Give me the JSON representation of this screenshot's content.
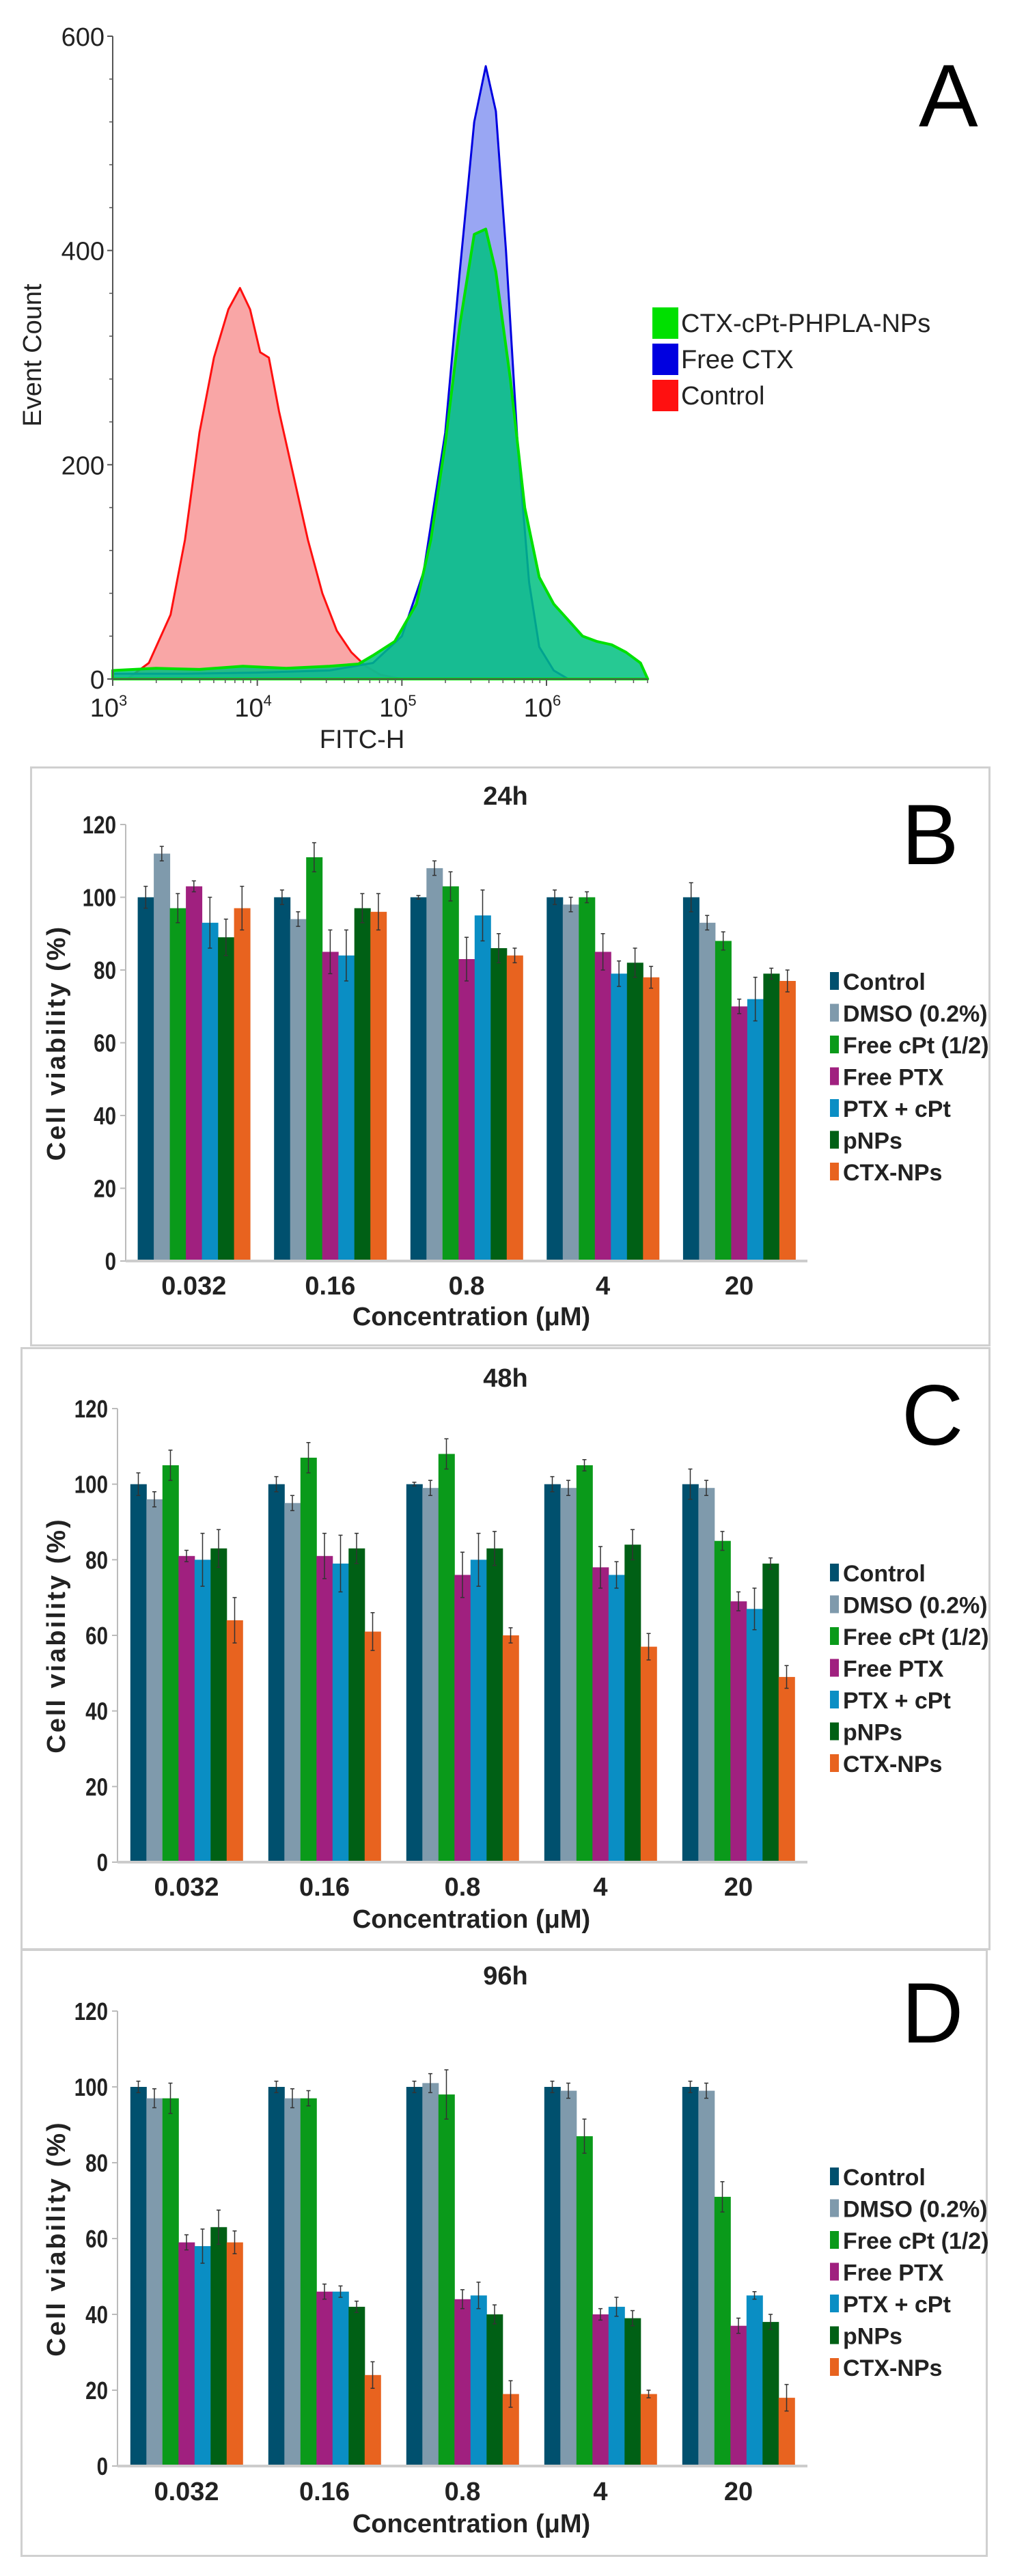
{
  "chart_data": [
    {
      "type": "area",
      "panel_letter": "A",
      "xlabel": "FITC-H",
      "ylabel": "Event Count",
      "xscale": "log",
      "xlim_log10": [
        3,
        6.7
      ],
      "ylim": [
        0,
        600
      ],
      "yticks": [
        "0",
        "200",
        "400",
        "600"
      ],
      "xticks": [
        {
          "base": "10",
          "exp": "3"
        },
        {
          "base": "10",
          "exp": "4"
        },
        {
          "base": "10",
          "exp": "5"
        },
        {
          "base": "10",
          "exp": "6"
        }
      ],
      "legend_position": "right",
      "series": [
        {
          "name": "CTX-cPt-PHPLA-NPs",
          "color": "#00e000",
          "fill": "#00c080",
          "points_log10x_count": [
            [
              3,
              8
            ],
            [
              3.3,
              10
            ],
            [
              3.6,
              9
            ],
            [
              3.9,
              12
            ],
            [
              4.2,
              10
            ],
            [
              4.5,
              12
            ],
            [
              4.7,
              14
            ],
            [
              4.8,
              22
            ],
            [
              4.95,
              35
            ],
            [
              5.1,
              70
            ],
            [
              5.2,
              130
            ],
            [
              5.3,
              220
            ],
            [
              5.4,
              330
            ],
            [
              5.5,
              415
            ],
            [
              5.58,
              420
            ],
            [
              5.65,
              380
            ],
            [
              5.75,
              280
            ],
            [
              5.85,
              160
            ],
            [
              5.95,
              95
            ],
            [
              6.05,
              70
            ],
            [
              6.15,
              55
            ],
            [
              6.25,
              40
            ],
            [
              6.35,
              35
            ],
            [
              6.45,
              32
            ],
            [
              6.55,
              25
            ],
            [
              6.65,
              15
            ],
            [
              6.7,
              0
            ]
          ]
        },
        {
          "name": "Free CTX",
          "color": "#0000e0",
          "fill": "#8090f0",
          "points_log10x_count": [
            [
              3,
              5
            ],
            [
              3.5,
              5
            ],
            [
              4,
              6
            ],
            [
              4.5,
              8
            ],
            [
              4.8,
              15
            ],
            [
              5.0,
              40
            ],
            [
              5.15,
              100
            ],
            [
              5.3,
              230
            ],
            [
              5.4,
              380
            ],
            [
              5.5,
              520
            ],
            [
              5.58,
              572
            ],
            [
              5.65,
              530
            ],
            [
              5.72,
              400
            ],
            [
              5.8,
              220
            ],
            [
              5.88,
              90
            ],
            [
              5.95,
              30
            ],
            [
              6.05,
              8
            ],
            [
              6.15,
              0
            ]
          ]
        },
        {
          "name": "Control",
          "color": "#ff1010",
          "fill": "#f89090",
          "points_log10x_count": [
            [
              3.1,
              0
            ],
            [
              3.25,
              15
            ],
            [
              3.4,
              60
            ],
            [
              3.5,
              130
            ],
            [
              3.6,
              230
            ],
            [
              3.7,
              300
            ],
            [
              3.8,
              345
            ],
            [
              3.88,
              365
            ],
            [
              3.95,
              345
            ],
            [
              4.02,
              305
            ],
            [
              4.08,
              300
            ],
            [
              4.15,
              250
            ],
            [
              4.25,
              190
            ],
            [
              4.35,
              130
            ],
            [
              4.45,
              80
            ],
            [
              4.55,
              45
            ],
            [
              4.65,
              25
            ],
            [
              4.75,
              12
            ],
            [
              4.85,
              4
            ],
            [
              5.0,
              0
            ]
          ]
        }
      ]
    },
    {
      "type": "bar",
      "panel_letter": "B",
      "title": "24h",
      "xlabel": "Concentration (μM)",
      "ylabel": "Cell viability (%)",
      "ylim": [
        0,
        120
      ],
      "yticks": [
        "0",
        "20",
        "40",
        "60",
        "80",
        "100",
        "120"
      ],
      "categories": [
        "0.032",
        "0.16",
        "0.8",
        "4",
        "20"
      ],
      "legend_position": "right",
      "series": [
        {
          "name": "Control",
          "color": "#00506e",
          "values": [
            100,
            100,
            100,
            100,
            100
          ],
          "errors": [
            3,
            2,
            0.5,
            2,
            4
          ]
        },
        {
          "name": "DMSO (0.2%)",
          "color": "#7f9aac",
          "values": [
            112,
            94,
            108,
            98,
            93
          ],
          "errors": [
            2,
            2,
            2,
            2,
            2
          ]
        },
        {
          "name": "Free cPt (1/2)",
          "color": "#0a9a1a",
          "values": [
            97,
            111,
            103,
            100,
            88
          ],
          "errors": [
            4,
            4,
            4,
            1.5,
            2.5
          ]
        },
        {
          "name": "Free PTX",
          "color": "#a0207f",
          "values": [
            103,
            85,
            83,
            85,
            70
          ],
          "errors": [
            1.5,
            6,
            6,
            5,
            2
          ]
        },
        {
          "name": "PTX + cPt",
          "color": "#0a8ec4",
          "values": [
            93,
            84,
            95,
            79,
            72
          ],
          "errors": [
            7,
            7,
            7,
            3.5,
            6
          ]
        },
        {
          "name": "pNPs",
          "color": "#006015",
          "values": [
            89,
            97,
            86,
            82,
            79
          ],
          "errors": [
            5,
            4,
            4,
            4,
            1.5
          ]
        },
        {
          "name": "CTX-NPs",
          "color": "#e8631f",
          "values": [
            97,
            96,
            84,
            78,
            77
          ],
          "errors": [
            6,
            5,
            2,
            3,
            3
          ]
        }
      ]
    },
    {
      "type": "bar",
      "panel_letter": "C",
      "title": "48h",
      "xlabel": "Concentration (μM)",
      "ylabel": "Cell viability (%)",
      "ylim": [
        0,
        120
      ],
      "yticks": [
        "0",
        "20",
        "40",
        "60",
        "80",
        "100",
        "120"
      ],
      "categories": [
        "0.032",
        "0.16",
        "0.8",
        "4",
        "20"
      ],
      "legend_position": "right",
      "series": [
        {
          "name": "Control",
          "color": "#00506e",
          "values": [
            100,
            100,
            100,
            100,
            100
          ],
          "errors": [
            3,
            2,
            0.5,
            2,
            4
          ]
        },
        {
          "name": "DMSO (0.2%)",
          "color": "#7f9aac",
          "values": [
            96,
            95,
            99,
            99,
            99
          ],
          "errors": [
            2,
            2,
            2,
            2,
            2
          ]
        },
        {
          "name": "Free cPt (1/2)",
          "color": "#0a9a1a",
          "values": [
            105,
            107,
            108,
            105,
            85
          ],
          "errors": [
            4,
            4,
            4,
            1.5,
            2.5
          ]
        },
        {
          "name": "Free PTX",
          "color": "#a0207f",
          "values": [
            81,
            81,
            76,
            78,
            69
          ],
          "errors": [
            1.5,
            6,
            6,
            5.5,
            2.5
          ]
        },
        {
          "name": "PTX + cPt",
          "color": "#0a8ec4",
          "values": [
            80,
            79,
            80,
            76,
            67
          ],
          "errors": [
            7,
            7.5,
            7,
            3.5,
            5.5
          ]
        },
        {
          "name": "pNPs",
          "color": "#006015",
          "values": [
            83,
            83,
            83,
            84,
            79
          ],
          "errors": [
            5,
            4,
            4.5,
            4,
            1.5
          ]
        },
        {
          "name": "CTX-NPs",
          "color": "#e8631f",
          "values": [
            64,
            61,
            60,
            57,
            49
          ],
          "errors": [
            6,
            5,
            2,
            3.5,
            3
          ]
        }
      ]
    },
    {
      "type": "bar",
      "panel_letter": "D",
      "title": "96h",
      "xlabel": "Concentration (μM)",
      "ylabel": "Cell viability (%)",
      "ylim": [
        0,
        120
      ],
      "yticks": [
        "0",
        "20",
        "40",
        "60",
        "80",
        "100",
        "120"
      ],
      "categories": [
        "0.032",
        "0.16",
        "0.8",
        "4",
        "20"
      ],
      "legend_position": "right",
      "series": [
        {
          "name": "Control",
          "color": "#00506e",
          "values": [
            100,
            100,
            100,
            100,
            100
          ],
          "errors": [
            1.5,
            1.5,
            1.5,
            1.5,
            1.5
          ]
        },
        {
          "name": "DMSO (0.2%)",
          "color": "#7f9aac",
          "values": [
            97,
            97,
            101,
            99,
            99
          ],
          "errors": [
            2.5,
            2.5,
            2.5,
            2,
            2
          ]
        },
        {
          "name": "Free cPt (1/2)",
          "color": "#0a9a1a",
          "values": [
            97,
            97,
            98,
            87,
            71
          ],
          "errors": [
            4,
            2,
            6.5,
            4.5,
            4
          ]
        },
        {
          "name": "Free PTX",
          "color": "#a0207f",
          "values": [
            59,
            46,
            44,
            40,
            37
          ],
          "errors": [
            2,
            2,
            2.5,
            1.5,
            2
          ]
        },
        {
          "name": "PTX + cPt",
          "color": "#0a8ec4",
          "values": [
            58,
            46,
            45,
            42,
            45
          ],
          "errors": [
            4.5,
            1.5,
            3.5,
            2.5,
            1
          ]
        },
        {
          "name": "pNPs",
          "color": "#006015",
          "values": [
            63,
            42,
            40,
            39,
            38
          ],
          "errors": [
            4.5,
            1.5,
            2.5,
            2,
            2
          ]
        },
        {
          "name": "CTX-NPs",
          "color": "#e8631f",
          "values": [
            59,
            24,
            19,
            19,
            18
          ],
          "errors": [
            3,
            3.5,
            3.5,
            1,
            3.5
          ]
        }
      ]
    }
  ]
}
